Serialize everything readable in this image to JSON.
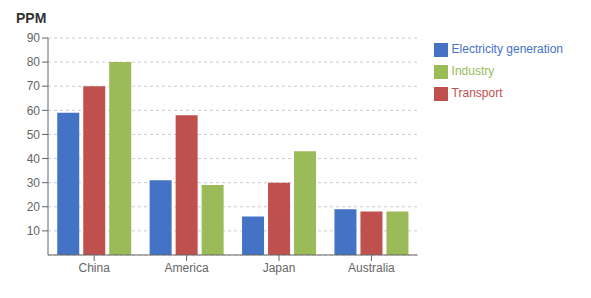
{
  "chart_data": {
    "type": "bar",
    "title": "PPM",
    "categories": [
      "China",
      "America",
      "Japan",
      "Australia"
    ],
    "series": [
      {
        "name": "Electricity generation",
        "color": "#4472C4",
        "values": [
          59,
          31,
          16,
          19
        ]
      },
      {
        "name": "Transport",
        "color": "#C0504D",
        "values": [
          70,
          58,
          30,
          18
        ]
      },
      {
        "name": "Industry",
        "color": "#9BBB59",
        "values": [
          80,
          29,
          43,
          18
        ]
      }
    ],
    "ylim": [
      0,
      90
    ],
    "yticks": [
      10,
      20,
      30,
      40,
      50,
      60,
      70,
      80,
      90
    ],
    "grid": true,
    "legend": "right"
  }
}
